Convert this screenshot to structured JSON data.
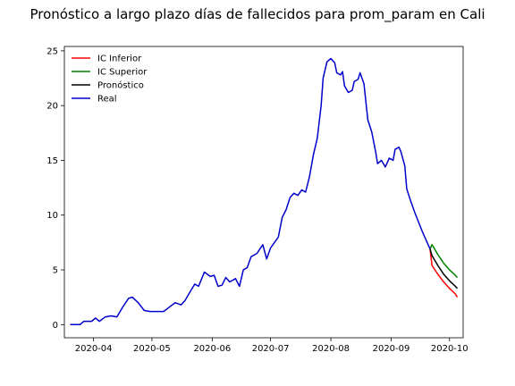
{
  "chart_data": {
    "type": "line",
    "title": "Pronóstico a largo plazo días de fallecidos para prom_param en Cali",
    "xlabel": "",
    "ylabel": "",
    "x_range": [
      "2020-03-17",
      "2020-10-08"
    ],
    "ylim": [
      -1.2,
      25.4
    ],
    "x_ticks": [
      {
        "date": "2020-04-01",
        "label": "2020-04"
      },
      {
        "date": "2020-05-01",
        "label": "2020-05"
      },
      {
        "date": "2020-06-01",
        "label": "2020-06"
      },
      {
        "date": "2020-07-01",
        "label": "2020-07"
      },
      {
        "date": "2020-08-01",
        "label": "2020-08"
      },
      {
        "date": "2020-09-01",
        "label": "2020-09"
      },
      {
        "date": "2020-10-01",
        "label": "2020-10"
      }
    ],
    "y_ticks": [
      0,
      5,
      10,
      15,
      20,
      25
    ],
    "grid": false,
    "legend_position": "top-left",
    "series": [
      {
        "name": "IC Inferior",
        "color": "#ff0000",
        "points": [
          [
            "2020-09-21",
            6.9
          ],
          [
            "2020-09-22",
            5.4
          ],
          [
            "2020-09-25",
            4.6
          ],
          [
            "2020-09-28",
            3.9
          ],
          [
            "2020-10-01",
            3.3
          ],
          [
            "2020-10-04",
            2.8
          ],
          [
            "2020-10-05",
            2.5
          ]
        ]
      },
      {
        "name": "IC Superior",
        "color": "#008000",
        "points": [
          [
            "2020-09-21",
            6.9
          ],
          [
            "2020-09-22",
            7.3
          ],
          [
            "2020-09-25",
            6.4
          ],
          [
            "2020-09-28",
            5.6
          ],
          [
            "2020-10-01",
            5.0
          ],
          [
            "2020-10-04",
            4.5
          ],
          [
            "2020-10-05",
            4.3
          ]
        ]
      },
      {
        "name": "Pronóstico",
        "color": "#000000",
        "points": [
          [
            "2020-09-21",
            6.9
          ],
          [
            "2020-09-22",
            6.3
          ],
          [
            "2020-09-25",
            5.4
          ],
          [
            "2020-09-28",
            4.6
          ],
          [
            "2020-10-01",
            4.0
          ],
          [
            "2020-10-04",
            3.5
          ],
          [
            "2020-10-05",
            3.3
          ]
        ]
      },
      {
        "name": "Real",
        "color": "#0000cc",
        "points": [
          [
            "2020-03-20",
            0.0
          ],
          [
            "2020-03-25",
            0.0
          ],
          [
            "2020-03-27",
            0.3
          ],
          [
            "2020-03-31",
            0.3
          ],
          [
            "2020-04-02",
            0.6
          ],
          [
            "2020-04-04",
            0.3
          ],
          [
            "2020-04-07",
            0.7
          ],
          [
            "2020-04-10",
            0.8
          ],
          [
            "2020-04-13",
            0.7
          ],
          [
            "2020-04-16",
            1.6
          ],
          [
            "2020-04-19",
            2.4
          ],
          [
            "2020-04-21",
            2.5
          ],
          [
            "2020-04-24",
            2.0
          ],
          [
            "2020-04-27",
            1.3
          ],
          [
            "2020-04-30",
            1.2
          ],
          [
            "2020-05-04",
            1.2
          ],
          [
            "2020-05-07",
            1.2
          ],
          [
            "2020-05-10",
            1.6
          ],
          [
            "2020-05-13",
            2.0
          ],
          [
            "2020-05-16",
            1.8
          ],
          [
            "2020-05-18",
            2.2
          ],
          [
            "2020-05-21",
            3.1
          ],
          [
            "2020-05-23",
            3.7
          ],
          [
            "2020-05-25",
            3.5
          ],
          [
            "2020-05-28",
            4.8
          ],
          [
            "2020-05-31",
            4.4
          ],
          [
            "2020-06-02",
            4.5
          ],
          [
            "2020-06-04",
            3.5
          ],
          [
            "2020-06-06",
            3.6
          ],
          [
            "2020-06-08",
            4.3
          ],
          [
            "2020-06-10",
            3.9
          ],
          [
            "2020-06-13",
            4.2
          ],
          [
            "2020-06-15",
            3.5
          ],
          [
            "2020-06-17",
            5.0
          ],
          [
            "2020-06-19",
            5.2
          ],
          [
            "2020-06-21",
            6.2
          ],
          [
            "2020-06-24",
            6.5
          ],
          [
            "2020-06-27",
            7.3
          ],
          [
            "2020-06-29",
            6.0
          ],
          [
            "2020-07-01",
            7.0
          ],
          [
            "2020-07-03",
            7.5
          ],
          [
            "2020-07-05",
            8.0
          ],
          [
            "2020-07-07",
            9.8
          ],
          [
            "2020-07-09",
            10.5
          ],
          [
            "2020-07-11",
            11.6
          ],
          [
            "2020-07-13",
            12.0
          ],
          [
            "2020-07-15",
            11.8
          ],
          [
            "2020-07-17",
            12.3
          ],
          [
            "2020-07-19",
            12.1
          ],
          [
            "2020-07-21",
            13.5
          ],
          [
            "2020-07-23",
            15.5
          ],
          [
            "2020-07-25",
            17.0
          ],
          [
            "2020-07-27",
            20.0
          ],
          [
            "2020-07-28",
            22.5
          ],
          [
            "2020-07-30",
            24.0
          ],
          [
            "2020-08-01",
            24.3
          ],
          [
            "2020-08-03",
            23.9
          ],
          [
            "2020-08-04",
            23.0
          ],
          [
            "2020-08-06",
            22.8
          ],
          [
            "2020-08-07",
            23.1
          ],
          [
            "2020-08-08",
            21.8
          ],
          [
            "2020-08-10",
            21.2
          ],
          [
            "2020-08-12",
            21.4
          ],
          [
            "2020-08-13",
            22.2
          ],
          [
            "2020-08-15",
            22.4
          ],
          [
            "2020-08-16",
            23.0
          ],
          [
            "2020-08-18",
            22.0
          ],
          [
            "2020-08-20",
            18.7
          ],
          [
            "2020-08-22",
            17.6
          ],
          [
            "2020-08-24",
            15.8
          ],
          [
            "2020-08-25",
            14.7
          ],
          [
            "2020-08-27",
            15.0
          ],
          [
            "2020-08-29",
            14.4
          ],
          [
            "2020-08-31",
            15.2
          ],
          [
            "2020-09-02",
            15.0
          ],
          [
            "2020-09-03",
            16.0
          ],
          [
            "2020-09-05",
            16.2
          ],
          [
            "2020-09-06",
            15.8
          ],
          [
            "2020-09-08",
            14.5
          ],
          [
            "2020-09-09",
            12.4
          ],
          [
            "2020-09-11",
            11.3
          ],
          [
            "2020-09-13",
            10.3
          ],
          [
            "2020-09-15",
            9.4
          ],
          [
            "2020-09-17",
            8.5
          ],
          [
            "2020-09-19",
            7.7
          ],
          [
            "2020-09-21",
            6.9
          ]
        ]
      }
    ]
  }
}
